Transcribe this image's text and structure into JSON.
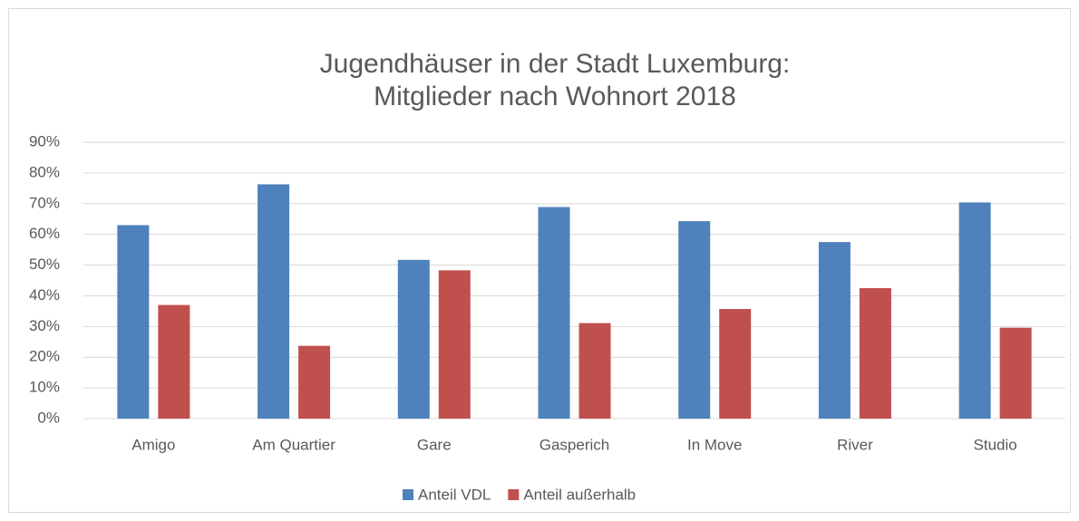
{
  "chart_data": {
    "type": "bar",
    "title": [
      "Jugendhäuser in der Stadt Luxemburg:",
      "Mitglieder nach Wohnort 2018"
    ],
    "categories": [
      "Amigo",
      "Am Quartier",
      "Gare",
      "Gasperich",
      "In Move",
      "River",
      "Studio"
    ],
    "series": [
      {
        "name": "Anteil VDL",
        "color": "#4f81bd",
        "values": [
          63,
          76.3,
          51.7,
          68.9,
          64.3,
          57.5,
          70.4
        ]
      },
      {
        "name": "Anteil außerhalb",
        "color": "#c0504d",
        "values": [
          37,
          23.7,
          48.3,
          31.1,
          35.7,
          42.5,
          29.6
        ]
      }
    ],
    "ylim": [
      0,
      90
    ],
    "yticks": [
      {
        "value": 0,
        "label": "0%"
      },
      {
        "value": 10,
        "label": "10%"
      },
      {
        "value": 20,
        "label": "20%"
      },
      {
        "value": 30,
        "label": "30%"
      },
      {
        "value": 40,
        "label": "40%"
      },
      {
        "value": 50,
        "label": "50%"
      },
      {
        "value": 60,
        "label": "60%"
      },
      {
        "value": 70,
        "label": "70%"
      },
      {
        "value": 80,
        "label": "80%"
      },
      {
        "value": 90,
        "label": "90%"
      }
    ],
    "grid": true,
    "legend": "bottom"
  }
}
